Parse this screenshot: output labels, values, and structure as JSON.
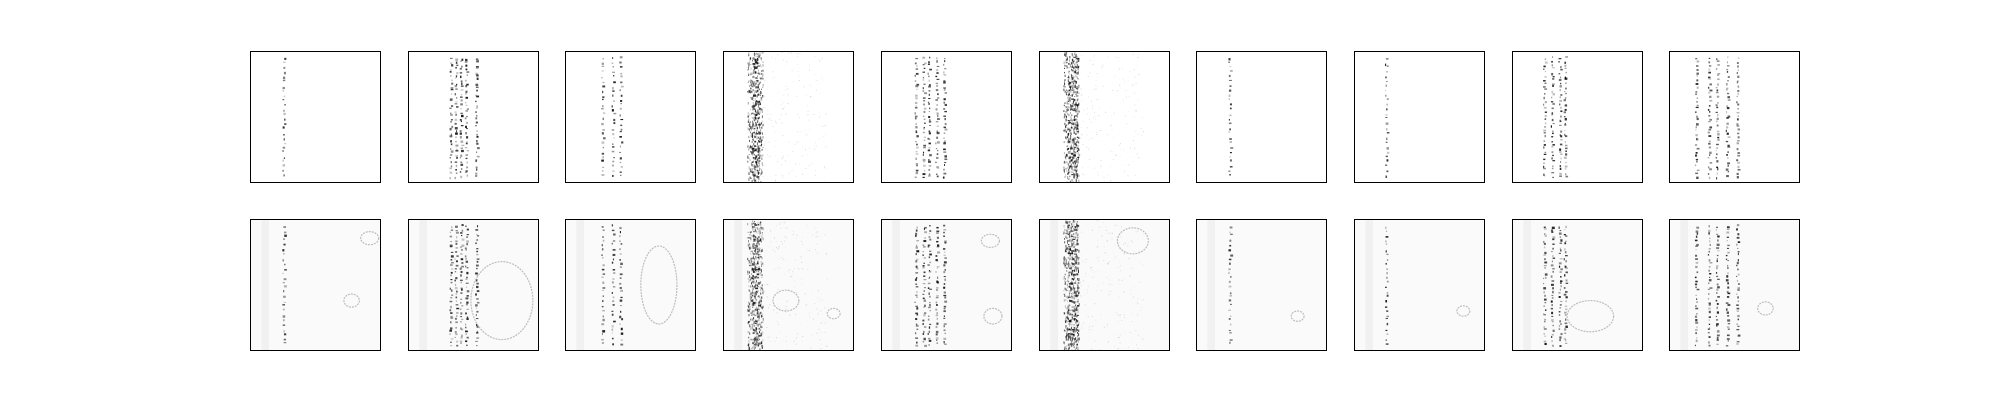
{
  "figure": {
    "background": "#ffffff",
    "rows": 2,
    "columns": 10,
    "panel_border_color": "#000000",
    "ink_color": "#000000",
    "panels": [
      {
        "row": 0,
        "col": 0,
        "pattern": "sparse-vertical-streak",
        "outline_shapes": 0
      },
      {
        "row": 0,
        "col": 1,
        "pattern": "dense-vertical-streaks",
        "outline_shapes": 0
      },
      {
        "row": 0,
        "col": 2,
        "pattern": "sparse-vertical-streak",
        "outline_shapes": 0
      },
      {
        "row": 0,
        "col": 3,
        "pattern": "noisy-vertical-band",
        "outline_shapes": 0
      },
      {
        "row": 0,
        "col": 4,
        "pattern": "dense-vertical-streaks",
        "outline_shapes": 0
      },
      {
        "row": 0,
        "col": 5,
        "pattern": "noisy-vertical-band",
        "outline_shapes": 0
      },
      {
        "row": 0,
        "col": 6,
        "pattern": "sparse-vertical-streak",
        "outline_shapes": 0
      },
      {
        "row": 0,
        "col": 7,
        "pattern": "sparse-vertical-streak",
        "outline_shapes": 0
      },
      {
        "row": 0,
        "col": 8,
        "pattern": "dense-vertical-streaks",
        "outline_shapes": 0
      },
      {
        "row": 0,
        "col": 9,
        "pattern": "dense-vertical-streaks",
        "outline_shapes": 0
      },
      {
        "row": 1,
        "col": 0,
        "pattern": "sparse-vertical-streak",
        "outline_shapes": 2
      },
      {
        "row": 1,
        "col": 1,
        "pattern": "dense-vertical-streaks",
        "outline_shapes": 1
      },
      {
        "row": 1,
        "col": 2,
        "pattern": "sparse-vertical-streak",
        "outline_shapes": 1
      },
      {
        "row": 1,
        "col": 3,
        "pattern": "noisy-vertical-band",
        "outline_shapes": 2
      },
      {
        "row": 1,
        "col": 4,
        "pattern": "dense-vertical-streaks",
        "outline_shapes": 2
      },
      {
        "row": 1,
        "col": 5,
        "pattern": "noisy-vertical-band",
        "outline_shapes": 1
      },
      {
        "row": 1,
        "col": 6,
        "pattern": "sparse-vertical-streak",
        "outline_shapes": 1
      },
      {
        "row": 1,
        "col": 7,
        "pattern": "sparse-vertical-streak",
        "outline_shapes": 1
      },
      {
        "row": 1,
        "col": 8,
        "pattern": "dense-vertical-streaks",
        "outline_shapes": 1
      },
      {
        "row": 1,
        "col": 9,
        "pattern": "dense-vertical-streaks",
        "outline_shapes": 1
      }
    ]
  }
}
